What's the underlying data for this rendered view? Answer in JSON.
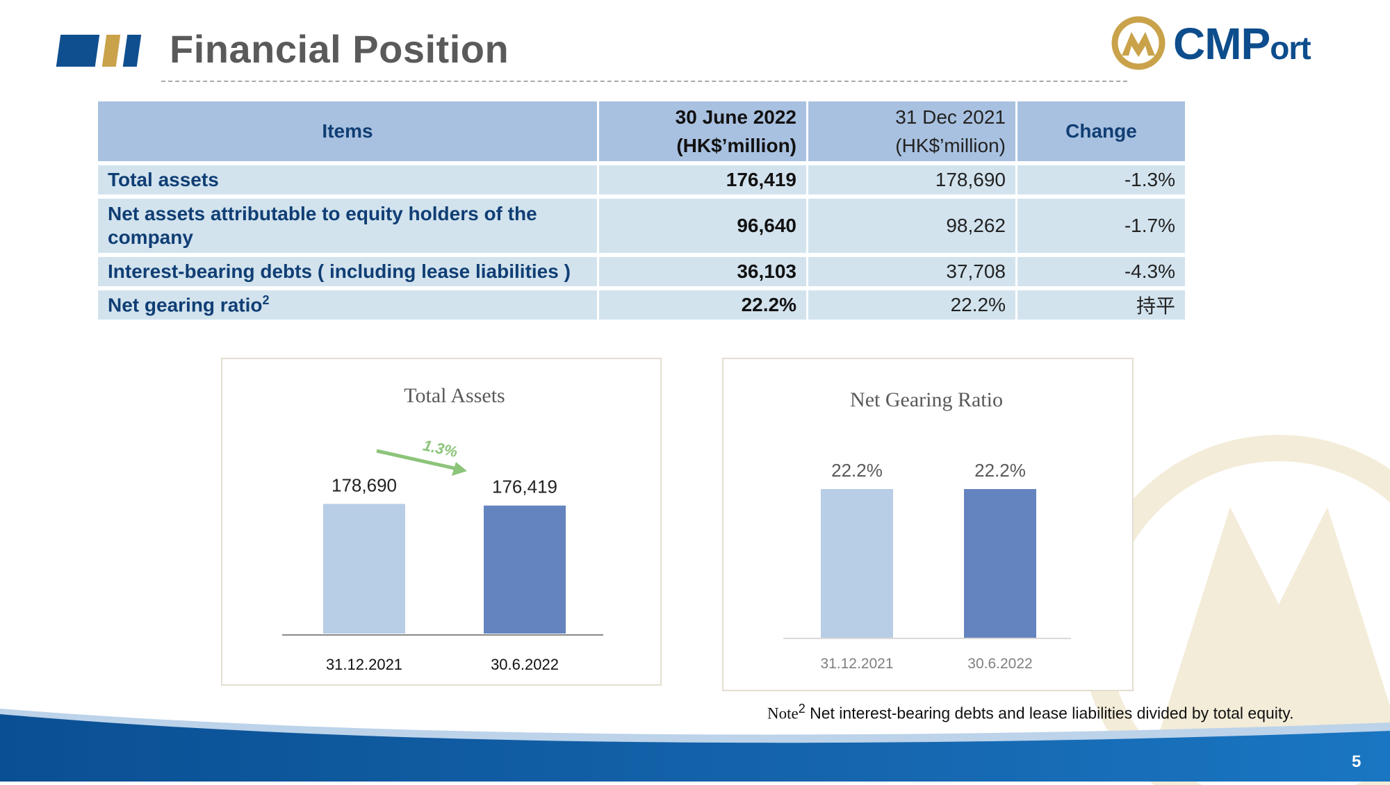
{
  "header": {
    "title": "Financial Position",
    "logo_text_main": "CMP",
    "logo_text_small": "ort"
  },
  "table": {
    "headers": {
      "items": "Items",
      "current_line1": "30 June 2022",
      "current_line2": "(HK$’million)",
      "previous_line1": "31 Dec 2021",
      "previous_line2": "(HK$’million)",
      "change": "Change"
    },
    "rows": [
      {
        "label": "Total assets",
        "sup": "",
        "current": "176,419",
        "previous": "178,690",
        "change": "-1.3%"
      },
      {
        "label": "Net assets attributable to equity holders of the company",
        "sup": "",
        "current": "96,640",
        "previous": "98,262",
        "change": "-1.7%"
      },
      {
        "label": "Interest-bearing debts ( including lease liabilities )",
        "sup": "",
        "current": "36,103",
        "previous": "37,708",
        "change": "-4.3%"
      },
      {
        "label": "Net gearing ratio",
        "sup": "2",
        "current": "22.2%",
        "previous": "22.2%",
        "change": "持平"
      }
    ]
  },
  "chart_data": [
    {
      "type": "bar",
      "title": "Total Assets",
      "categories": [
        "31.12.2021",
        "30.6.2022"
      ],
      "values": [
        178690,
        176419
      ],
      "data_labels": [
        "178,690",
        "176,419"
      ],
      "annotation": "1.3%",
      "ylim": [
        0,
        180000
      ],
      "colors": [
        "#b8cde6",
        "#6484bf"
      ],
      "grid": false
    },
    {
      "type": "bar",
      "title": "Net Gearing Ratio",
      "categories": [
        "31.12.2021",
        "30.6.2022"
      ],
      "values": [
        22.2,
        22.2
      ],
      "data_labels": [
        "22.2%",
        "22.2%"
      ],
      "ylim": [
        0,
        22.2
      ],
      "colors": [
        "#b8cde6",
        "#6484bf"
      ],
      "grid": false
    }
  ],
  "footer": {
    "note_label": "Note",
    "note_sup": "2",
    "note_text": " Net interest-bearing debts and lease liabilities divided by total equity.",
    "page_number": "5"
  },
  "colors": {
    "brand_blue": "#0d4d8c",
    "brand_gold": "#c9a24a",
    "header_cell": "#a9c1e0",
    "body_cell": "#d2e3ee",
    "arrow_green": "#8cc47a"
  }
}
